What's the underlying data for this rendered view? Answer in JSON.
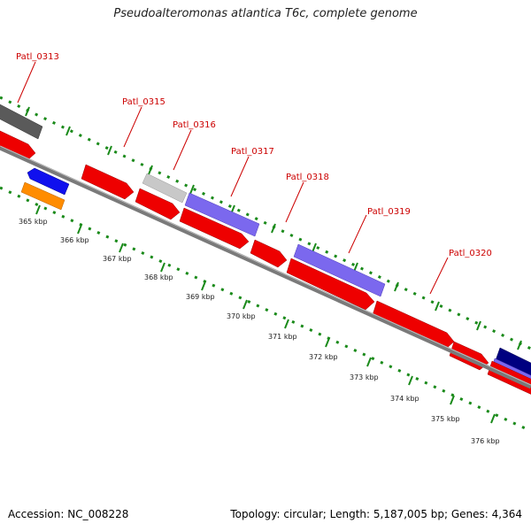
{
  "title": "Pseudoalteromonas atlantica T6c, complete genome",
  "gene_labels": [
    "Patl_0313",
    "Patl_0315",
    "Patl_0316",
    "Patl_0317",
    "Patl_0318",
    "Patl_0319",
    "Patl_0320"
  ],
  "scale_labels": [
    "365 kbp",
    "366 kbp",
    "367 kbp",
    "368 kbp",
    "369 kbp",
    "370 kbp",
    "371 kbp",
    "372 kbp",
    "373 kbp",
    "374 kbp",
    "375 kbp",
    "376 kbp"
  ],
  "footer": {
    "accession": "Accession: NC_008228",
    "summary": "Topology: circular; Length: 5,187,005 bp; Genes: 4,364"
  },
  "colors": {
    "gene_label": "#cc0000",
    "dotted_track": "#1a8a1a",
    "backbone": "#7a7a7a",
    "cds_red": "#ee0000",
    "blue": "#1010ee",
    "orange": "#ff8c00",
    "lavender": "#7b68ee",
    "light_gray": "#c8c8c8",
    "dark_gray": "#5a5a5a",
    "navy": "#000080"
  }
}
